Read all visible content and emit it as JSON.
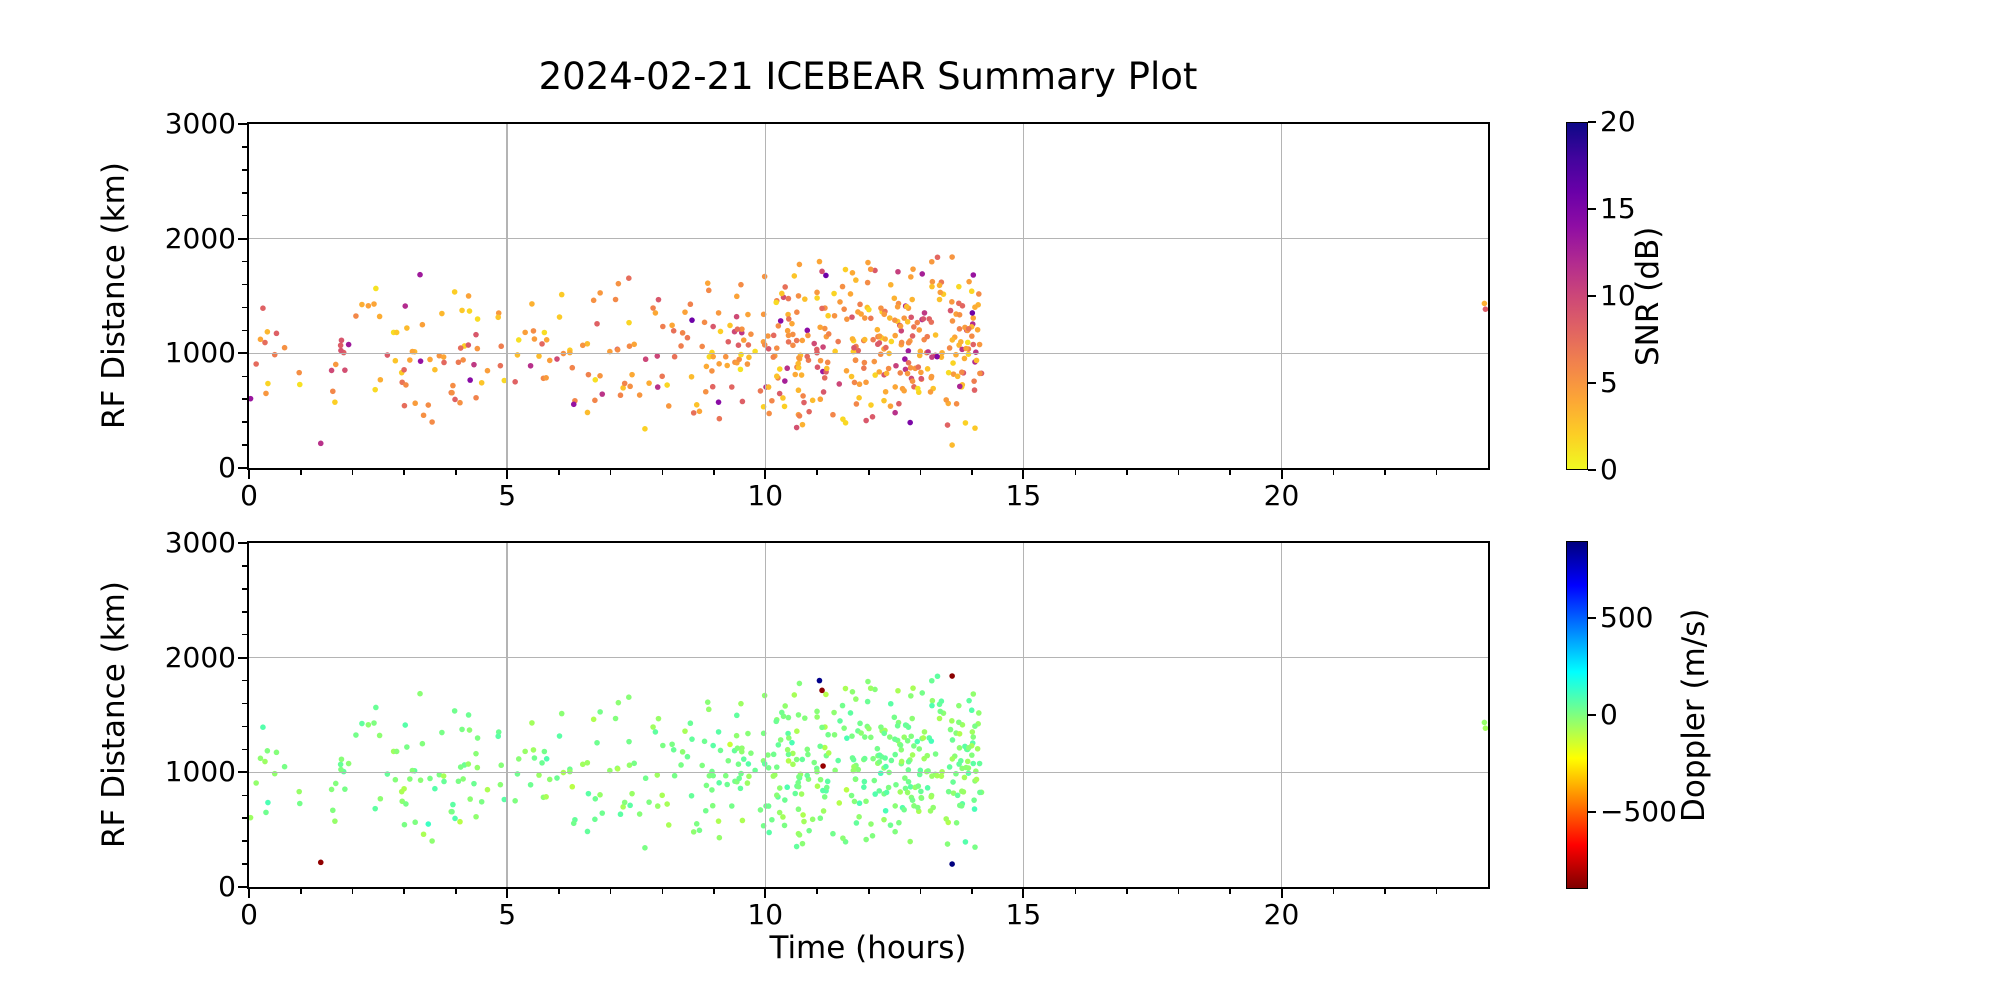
{
  "figure": {
    "background": "#ffffff",
    "text_color": "#000000"
  },
  "chart_data": {
    "type": "scatter",
    "title": "2024-02-21 ICEBEAR Summary Plot",
    "xlabel": "Time (hours)",
    "grid": true,
    "grid_color": "#b4b4b4",
    "spine_color": "#000000",
    "xlim": [
      0,
      24
    ],
    "ylim": [
      0,
      3000
    ],
    "xticks": [
      0,
      5,
      10,
      15,
      20
    ],
    "xtick_labels": [
      "0",
      "5",
      "10",
      "15",
      "20"
    ],
    "x_minor_step": 1,
    "yticks": [
      0,
      1000,
      2000,
      3000
    ],
    "ytick_labels": [
      "0",
      "1000",
      "2000",
      "3000"
    ],
    "y_minor_step": 200,
    "marker": {
      "radius": 2.8
    },
    "panels": [
      {
        "name": "snr-panel",
        "ylabel": "RF Distance (km)",
        "color_by": "snr_db",
        "has_xtick_labels": true,
        "colorbar": {
          "label": "SNR (dB)",
          "min": 0,
          "max": 20,
          "ticks": [
            0,
            5,
            10,
            15,
            20
          ],
          "tick_labels": [
            "0",
            "5",
            "10",
            "15",
            "20"
          ],
          "cmap": "plasma_r"
        }
      },
      {
        "name": "doppler-panel",
        "ylabel": "RF Distance (km)",
        "color_by": "doppler_ms",
        "has_xtick_labels": true,
        "colorbar": {
          "label": "Doppler (m/s)",
          "min": -900,
          "max": 900,
          "ticks": [
            -500,
            0,
            500
          ],
          "tick_labels": [
            "−500",
            "0",
            "500"
          ],
          "cmap": "jet_r"
        }
      }
    ],
    "colormaps": {
      "plasma": [
        [
          0.0,
          "#0d0887"
        ],
        [
          0.1,
          "#41049d"
        ],
        [
          0.2,
          "#6a00a8"
        ],
        [
          0.3,
          "#8f0da4"
        ],
        [
          0.4,
          "#b12a90"
        ],
        [
          0.5,
          "#cc4778"
        ],
        [
          0.6,
          "#e16462"
        ],
        [
          0.7,
          "#f2844b"
        ],
        [
          0.8,
          "#fca636"
        ],
        [
          0.9,
          "#fcce25"
        ],
        [
          1.0,
          "#f0f921"
        ]
      ],
      "jet": [
        [
          0.0,
          "#00007f"
        ],
        [
          0.125,
          "#0000ff"
        ],
        [
          0.375,
          "#00ffff"
        ],
        [
          0.625,
          "#ffff00"
        ],
        [
          0.875,
          "#ff0000"
        ],
        [
          1.0,
          "#7f0000"
        ]
      ]
    },
    "point_fields": [
      "time_hours",
      "rf_distance_km",
      "snr_db",
      "doppler_ms"
    ],
    "point_cloud": {
      "note": "echo distribution: sparse 0-8.5 h, dense 8.5-14.2 h, RF band ~280-1900 km, no data 14.2-23.9 h",
      "seed": 20240221,
      "bins": [
        [
          0.0,
          1.0,
          13,
          280,
          1620
        ],
        [
          1.0,
          2.0,
          10,
          300,
          1500
        ],
        [
          2.0,
          3.0,
          14,
          350,
          1650
        ],
        [
          3.0,
          4.0,
          26,
          300,
          1750
        ],
        [
          4.0,
          5.0,
          22,
          350,
          1650
        ],
        [
          5.0,
          6.0,
          16,
          400,
          1550
        ],
        [
          6.0,
          7.0,
          20,
          350,
          1700
        ],
        [
          7.0,
          8.0,
          22,
          300,
          1700
        ],
        [
          8.0,
          8.6,
          14,
          350,
          1750
        ],
        [
          8.6,
          9.6,
          40,
          300,
          1800
        ],
        [
          9.6,
          10.6,
          48,
          350,
          1800
        ],
        [
          10.6,
          11.6,
          62,
          300,
          1850
        ],
        [
          11.6,
          12.6,
          75,
          300,
          1900
        ],
        [
          12.6,
          13.6,
          78,
          280,
          1880
        ],
        [
          13.6,
          14.2,
          55,
          280,
          1850
        ]
      ],
      "snr_levels": [
        [
          0.55,
          1,
          6
        ],
        [
          0.85,
          4,
          9
        ],
        [
          0.96,
          8,
          12
        ],
        [
          1.0,
          11,
          16
        ]
      ],
      "doppler_spread": 90
    },
    "notable_points": [
      [
        1.39,
        215,
        11.5,
        -870
      ],
      [
        11.05,
        1800,
        4.0,
        880
      ],
      [
        11.1,
        1715,
        9.5,
        -880
      ],
      [
        11.12,
        1055,
        10.0,
        -860
      ],
      [
        13.62,
        1840,
        5.0,
        -880
      ],
      [
        13.62,
        200,
        3.0,
        900
      ],
      [
        23.93,
        1435,
        3.5,
        -40
      ],
      [
        23.95,
        1385,
        8.5,
        -60
      ]
    ]
  }
}
